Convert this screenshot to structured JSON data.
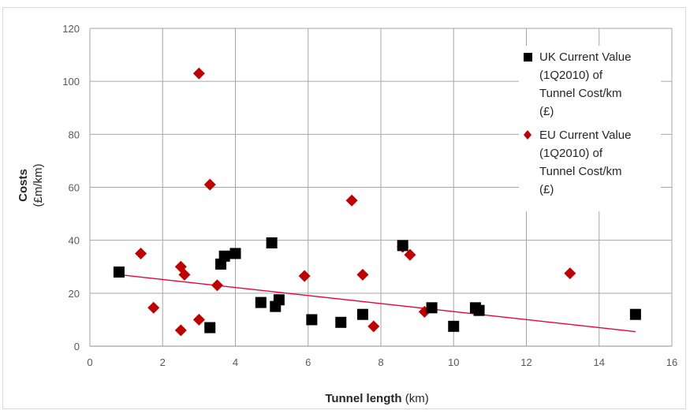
{
  "chart_data": {
    "type": "scatter",
    "xlabel_bold": "Tunnel length",
    "xlabel_unit": " (km)",
    "ylabel_bold": "Costs",
    "ylabel_unit": "(£m/km)",
    "xlim": [
      0,
      16
    ],
    "ylim": [
      0,
      120
    ],
    "xticks": [
      0,
      2,
      4,
      6,
      8,
      10,
      12,
      14,
      16
    ],
    "yticks": [
      0,
      20,
      40,
      60,
      80,
      100,
      120
    ],
    "grid": true,
    "legend_position": "top-right",
    "series": [
      {
        "name": "UK Current Value (1Q2010) of Tunnel Cost/km (£)",
        "legend_lines": [
          "UK Current Value",
          "(1Q2010) of",
          "Tunnel Cost/km",
          "(£)"
        ],
        "marker": "square",
        "color": "#000000",
        "points": [
          [
            0.8,
            28
          ],
          [
            3.3,
            7
          ],
          [
            3.6,
            31
          ],
          [
            3.7,
            34
          ],
          [
            4.0,
            35
          ],
          [
            4.7,
            16.5
          ],
          [
            5.0,
            39
          ],
          [
            5.1,
            15
          ],
          [
            5.2,
            17.5
          ],
          [
            6.1,
            10
          ],
          [
            6.9,
            9
          ],
          [
            7.5,
            12
          ],
          [
            8.6,
            38
          ],
          [
            9.4,
            14.5
          ],
          [
            10.0,
            7.5
          ],
          [
            10.6,
            14.5
          ],
          [
            10.7,
            13.5
          ],
          [
            15.0,
            12
          ]
        ]
      },
      {
        "name": "EU Current Value (1Q2010) of Tunnel Cost/km (£)",
        "legend_lines": [
          "EU Current Value",
          "(1Q2010) of",
          "Tunnel Cost/km",
          "(£)"
        ],
        "marker": "diamond",
        "color": "#c00000",
        "points": [
          [
            1.4,
            35
          ],
          [
            1.75,
            14.5
          ],
          [
            2.5,
            6
          ],
          [
            2.5,
            30
          ],
          [
            2.6,
            27
          ],
          [
            3.0,
            103
          ],
          [
            3.0,
            10
          ],
          [
            3.3,
            61
          ],
          [
            3.5,
            23
          ],
          [
            5.9,
            26.5
          ],
          [
            7.2,
            55
          ],
          [
            7.5,
            27
          ],
          [
            7.8,
            7.5
          ],
          [
            8.6,
            37.5
          ],
          [
            8.8,
            34.5
          ],
          [
            9.2,
            13
          ],
          [
            13.2,
            27.5
          ]
        ]
      }
    ],
    "trendline": {
      "color": "#e8003d",
      "from": [
        0.8,
        27
      ],
      "to": [
        15.0,
        5.5
      ]
    }
  }
}
